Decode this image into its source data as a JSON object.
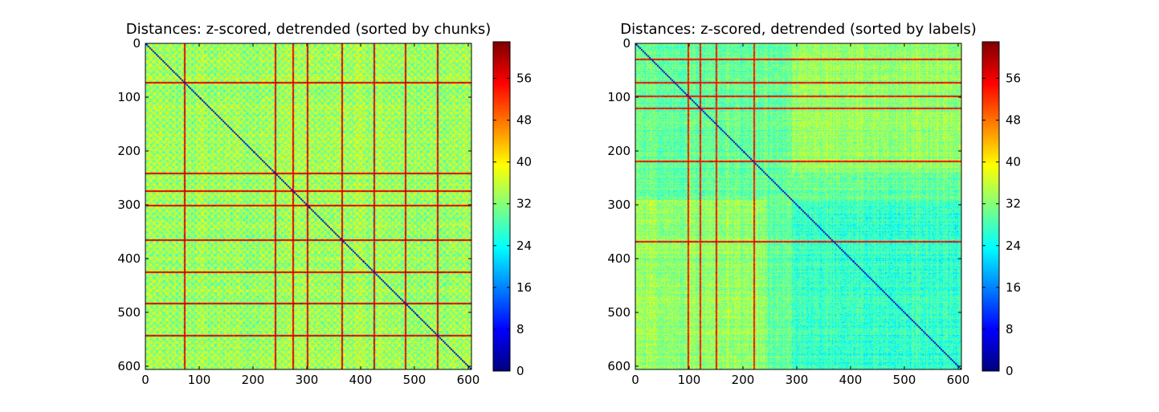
{
  "colormap": "jet",
  "chart_data": [
    {
      "type": "heatmap",
      "title": "Distances: z-scored, detrended (sorted by chunks)",
      "xlabel": "",
      "ylabel": "",
      "xlim": [
        0,
        606
      ],
      "ylim": [
        606,
        0
      ],
      "x_ticks": [
        0,
        100,
        200,
        300,
        400,
        500,
        600
      ],
      "y_ticks": [
        0,
        100,
        200,
        300,
        400,
        500,
        600
      ],
      "colorbar": {
        "range": [
          0,
          63
        ],
        "ticks": [
          0,
          8,
          16,
          24,
          32,
          40,
          48,
          56
        ]
      },
      "values": {
        "diagonal": 0,
        "background_mean": 33,
        "block_pattern": "chunk-periodic checkerboard",
        "high_distance_rows": [
          72,
          241,
          273,
          300,
          364,
          424,
          482,
          542
        ],
        "high_distance_cols": [
          72,
          241,
          273,
          300,
          364,
          424,
          482,
          542
        ],
        "row_col_peak": 60
      }
    },
    {
      "type": "heatmap",
      "title": "Distances: z-scored, detrended (sorted by labels)",
      "xlabel": "",
      "ylabel": "",
      "xlim": [
        0,
        606
      ],
      "ylim": [
        606,
        0
      ],
      "x_ticks": [
        0,
        100,
        200,
        300,
        400,
        500,
        600
      ],
      "y_ticks": [
        0,
        100,
        200,
        300,
        400,
        500,
        600
      ],
      "colorbar": {
        "range": [
          0,
          63
        ],
        "ticks": [
          0,
          8,
          16,
          24,
          32,
          40,
          48,
          56
        ]
      },
      "values": {
        "diagonal": 0,
        "background_mean": 30,
        "block_boundaries": [
          100,
          125,
          240,
          290
        ],
        "high_distance_rows": [
          28,
          72,
          98,
          120,
          218,
          367
        ],
        "high_distance_cols": [
          98,
          120,
          150,
          220
        ],
        "row_col_peak": 58
      }
    }
  ]
}
